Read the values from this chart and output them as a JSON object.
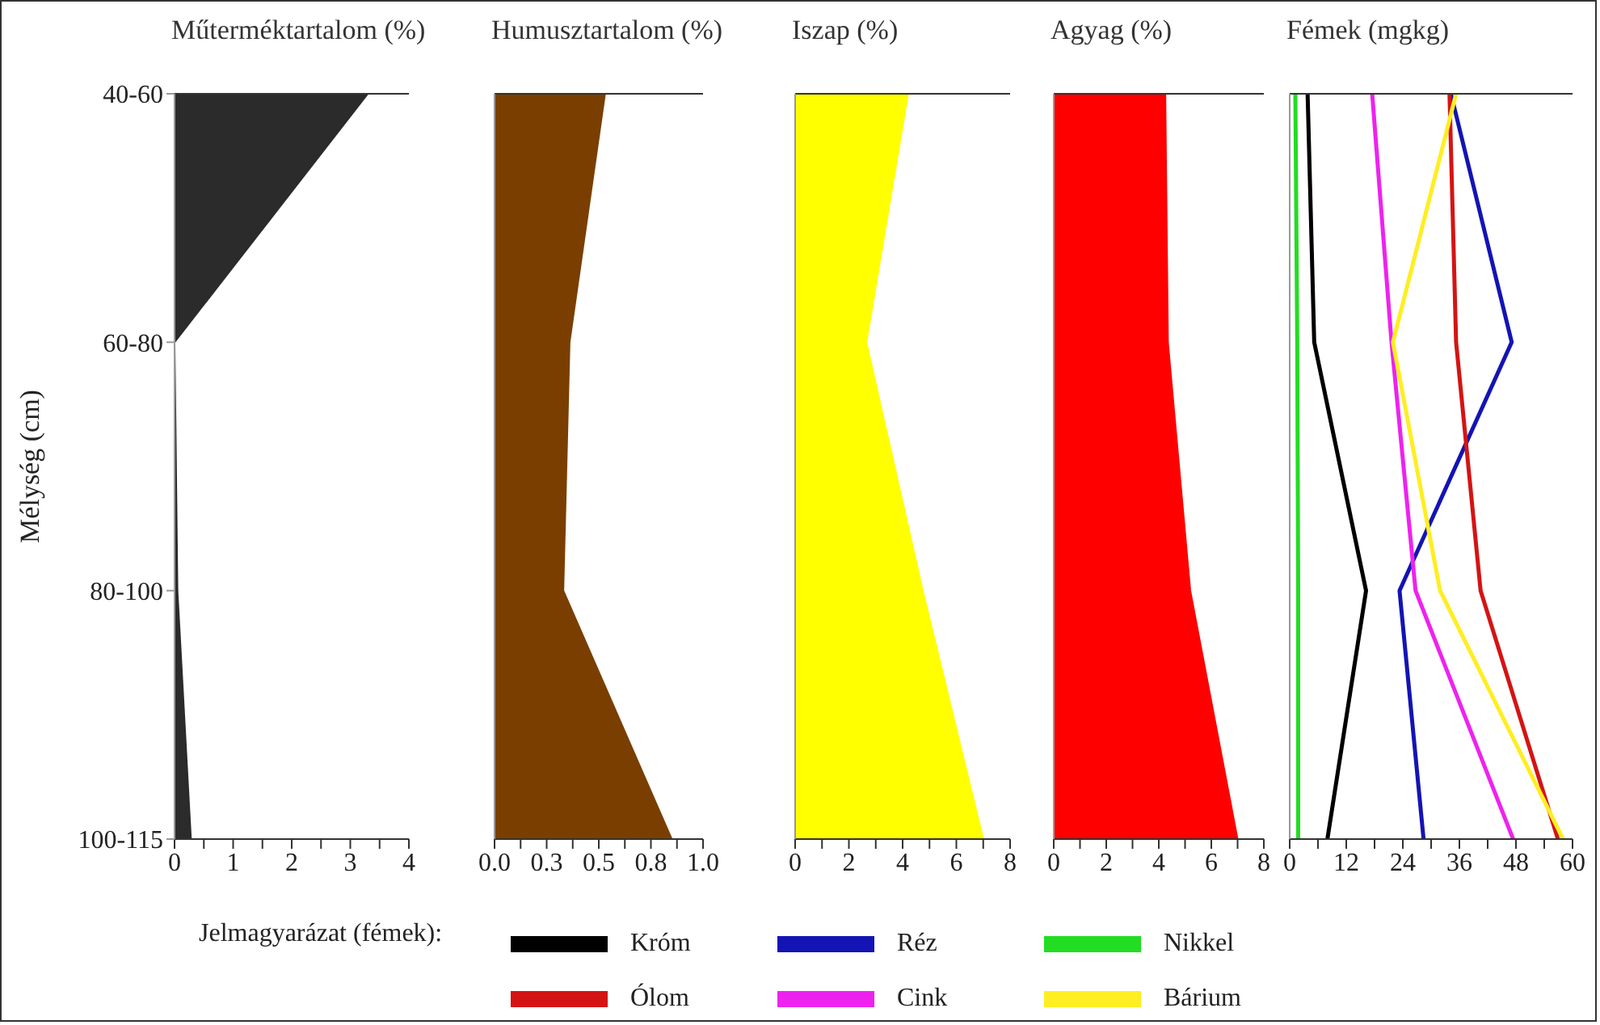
{
  "chart_data": [
    {
      "type": "area",
      "orientation": "horizontal",
      "title": "Műterméktartalom (%)",
      "ylabel": "Mélység (cm)",
      "categories": [
        "40-60",
        "60-80",
        "80-100",
        "100-115"
      ],
      "series": [
        {
          "color": "#2b2b2b",
          "values": [
            3.3,
            0,
            0.05,
            0.28
          ]
        }
      ],
      "xlim": [
        0,
        4
      ],
      "xticks": [
        0,
        {
          "value": 0.5,
          "label": null
        },
        1,
        {
          "value": 1.5,
          "label": null
        },
        2,
        {
          "value": 2.5,
          "label": null
        },
        3,
        {
          "value": 3.5,
          "label": null
        },
        4
      ]
    },
    {
      "type": "area",
      "orientation": "horizontal",
      "title": "Humusztartalom (%)",
      "categories": [
        null,
        null,
        null,
        null
      ],
      "tick_labels": "x",
      "series": [
        {
          "color": "#7a3f00",
          "values": [
            0.53,
            0.36,
            0.33,
            0.85
          ]
        }
      ],
      "xlim": [
        0,
        1
      ],
      "xticks": [
        {
          "value": 0,
          "label": "0.0"
        },
        {
          "value": 0.125,
          "label": null
        },
        {
          "value": 0.25,
          "label": "0.3"
        },
        {
          "value": 0.375,
          "label": null
        },
        0.5,
        {
          "value": 0.625,
          "label": null
        },
        {
          "value": 0.75,
          "label": "0.8"
        },
        {
          "value": 0.875,
          "label": null
        },
        {
          "value": 1,
          "label": "1.0"
        }
      ]
    },
    {
      "type": "area",
      "orientation": "horizontal",
      "title": "Iszap (%)",
      "categories": [
        null,
        null,
        null,
        null
      ],
      "tick_labels": "x",
      "series": [
        {
          "color": "#ffff00",
          "values": [
            4.2,
            2.65,
            4.75,
            7.0
          ]
        }
      ],
      "xlim": [
        0,
        8
      ],
      "xticks": [
        0,
        {
          "value": 1,
          "label": null
        },
        2,
        {
          "value": 3,
          "label": null
        },
        4,
        {
          "value": 5,
          "label": null
        },
        6,
        {
          "value": 7,
          "label": null
        },
        8
      ]
    },
    {
      "type": "area",
      "orientation": "horizontal",
      "title": "Agyag (%)",
      "categories": [
        null,
        null,
        null,
        null
      ],
      "tick_labels": "x",
      "series": [
        {
          "color": "#ff0000",
          "values": [
            4.25,
            4.35,
            5.2,
            7.0
          ]
        }
      ],
      "xlim": [
        0,
        8
      ],
      "xticks": [
        0,
        {
          "value": 1,
          "label": null
        },
        2,
        {
          "value": 3,
          "label": null
        },
        4,
        {
          "value": 5,
          "label": null
        },
        6,
        {
          "value": 7,
          "label": null
        },
        8
      ]
    },
    {
      "type": "line",
      "orientation": "horizontal",
      "title": "Fémek (mgkg)",
      "categories": [
        null,
        null,
        null,
        null
      ],
      "tick_labels": "x",
      "legend": "bottom",
      "legend_title": "Jelmagyarázat (fémek):",
      "series": [
        {
          "name": "Króm",
          "color": "#000000",
          "values": [
            3.8,
            5.2,
            16.2,
            8.0
          ]
        },
        {
          "name": "Réz",
          "color": "#1414b4",
          "values": [
            34.2,
            47.1,
            23.3,
            28.4
          ]
        },
        {
          "name": "Nikkel",
          "color": "#22dd22",
          "values": [
            1.2,
            1.6,
            1.8,
            1.8
          ]
        },
        {
          "name": "Ólom",
          "color": "#d41414",
          "values": [
            33.9,
            35.3,
            40.5,
            56.9
          ]
        },
        {
          "name": "Cink",
          "color": "#ee22ee",
          "values": [
            17.5,
            21.6,
            26.7,
            47.4
          ]
        },
        {
          "name": "Bárium",
          "color": "#ffee22",
          "values": [
            35.3,
            21.9,
            31.9,
            58.0
          ]
        }
      ],
      "xlim": [
        0,
        60
      ],
      "xticks": [
        0,
        {
          "value": 6,
          "label": null
        },
        12,
        {
          "value": 18,
          "label": null
        },
        24,
        {
          "value": 30,
          "label": null
        },
        36,
        {
          "value": 42,
          "label": null
        },
        48,
        {
          "value": 54,
          "label": null
        },
        60
      ]
    }
  ]
}
